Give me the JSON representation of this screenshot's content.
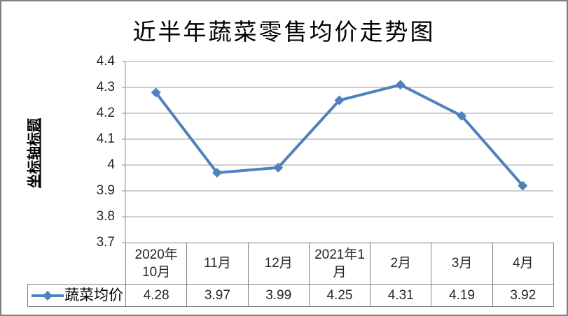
{
  "chart_data": {
    "type": "line",
    "title": "近半年蔬菜零售均价走势图",
    "ylabel": "坐标轴标题",
    "xlabel": "",
    "categories": [
      "2020年10月",
      "11月",
      "12月",
      "2021年1月",
      "2月",
      "3月",
      "4月"
    ],
    "series": [
      {
        "name": "蔬菜均价",
        "values": [
          4.28,
          3.97,
          3.99,
          4.25,
          4.31,
          4.19,
          3.92
        ]
      }
    ],
    "ylim": [
      3.7,
      4.4
    ],
    "ytick_step": 0.1,
    "grid": true,
    "legend_position": "bottom-table-key",
    "marker": "diamond",
    "data_table_values": [
      "4.28",
      "3.97",
      "3.99",
      "4.25",
      "4.31",
      "4.19",
      "3.92"
    ]
  },
  "y_axis": {
    "tick_labels": [
      "4.4",
      "4.3",
      "4.2",
      "4.1",
      "4",
      "3.9",
      "3.8",
      "3.7"
    ]
  },
  "colors": {
    "series": "#4F81BD",
    "gridline": "#9d9d9d",
    "axis": "#8c8c8c",
    "table_border": "#808080",
    "frame_border": "#7f7f7f",
    "background": "#ffffff",
    "text": "#262626"
  }
}
